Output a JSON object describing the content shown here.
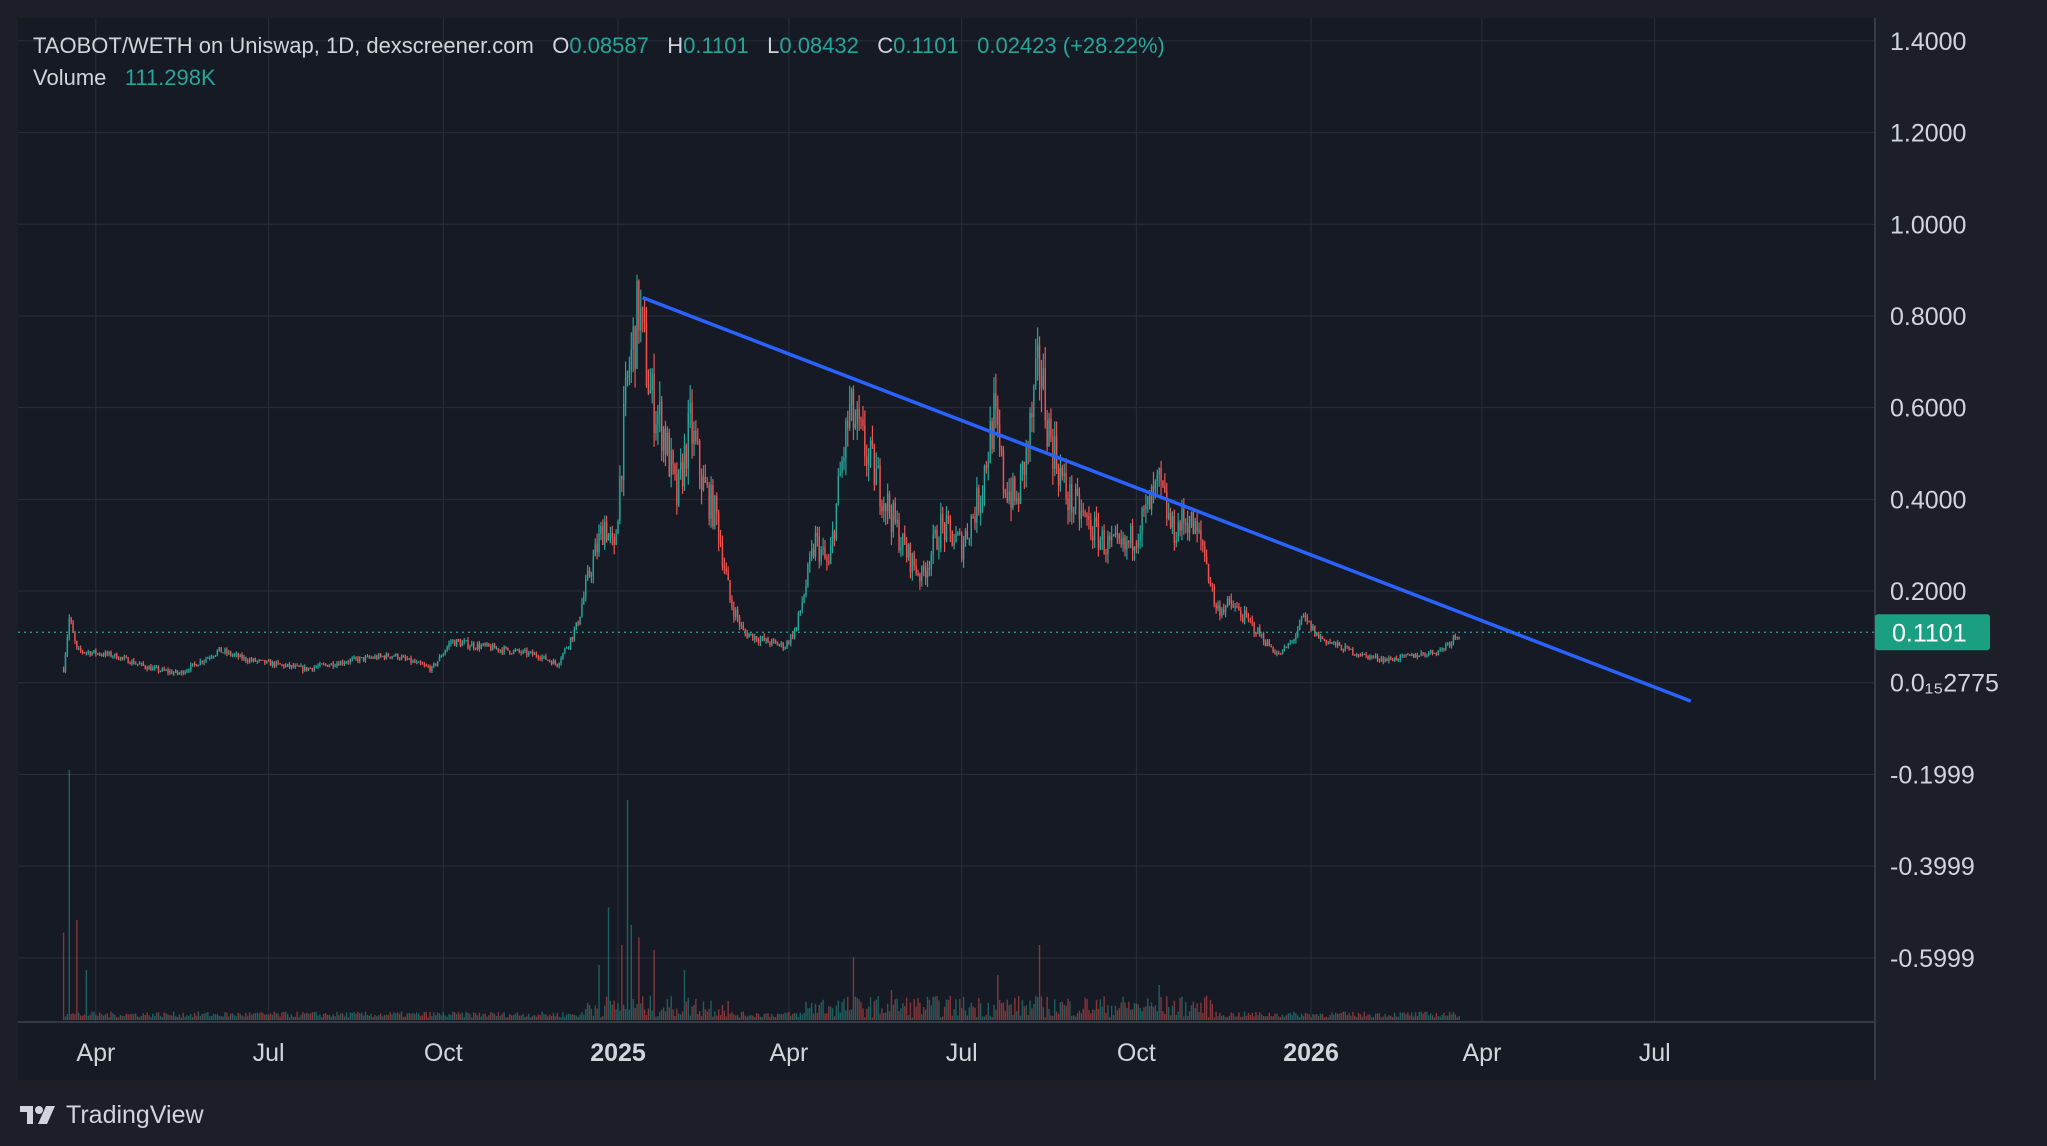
{
  "legend": {
    "symbol": "TAOBOT/WETH on Uniswap, 1D, dexscreener.com",
    "o_label": "O",
    "o_value": "0.08587",
    "h_label": "H",
    "h_value": "0.1101",
    "l_label": "L",
    "l_value": "0.08432",
    "c_label": "C",
    "c_value": "0.1101",
    "change": "0.02423 (+28.22%)",
    "volume_label": "Volume",
    "volume_value": "111.298K"
  },
  "price_tag": "0.1101",
  "footer": {
    "brand": "TradingView",
    "logo_icon": "tradingview-logo-icon"
  },
  "colors": {
    "background": "#1c1f28",
    "plot_background": "#161a25",
    "up": "#26a69a",
    "down": "#ef5350",
    "trendline": "#2962ff",
    "grid": "#2a2e39",
    "axis_text": "#d1d4dc"
  },
  "chart_data": {
    "type": "candlestick",
    "interval": "1D",
    "y_ticks": [
      "1.4000",
      "1.2000",
      "1.0000",
      "0.8000",
      "0.6000",
      "0.4000",
      "0.2000",
      "0.0₁₅2775",
      "-0.1999",
      "-0.3999",
      "-0.5999"
    ],
    "y_tick_values": [
      1.4,
      1.2,
      1.0,
      0.8,
      0.6,
      0.4,
      0.2,
      0.0,
      -0.2,
      -0.4,
      -0.6
    ],
    "ylim": [
      -0.74,
      1.45
    ],
    "x_ticks": [
      {
        "label": "Apr",
        "date": "2024-04-01",
        "bold": false
      },
      {
        "label": "Jul",
        "date": "2024-07-01",
        "bold": false
      },
      {
        "label": "Oct",
        "date": "2024-10-01",
        "bold": false
      },
      {
        "label": "2025",
        "date": "2025-01-01",
        "bold": true
      },
      {
        "label": "Apr",
        "date": "2025-04-01",
        "bold": false
      },
      {
        "label": "Jul",
        "date": "2025-07-01",
        "bold": false
      },
      {
        "label": "Oct",
        "date": "2025-10-01",
        "bold": false
      },
      {
        "label": "2026",
        "date": "2026-01-01",
        "bold": true
      },
      {
        "label": "Apr",
        "date": "2026-04-01",
        "bold": false
      },
      {
        "label": "Jul",
        "date": "2026-07-01",
        "bold": false
      }
    ],
    "xlim": [
      "2024-02-20",
      "2026-10-25"
    ],
    "last_price": 0.1101,
    "close_series": [
      [
        "2024-03-15",
        0.03
      ],
      [
        "2024-03-18",
        0.14
      ],
      [
        "2024-03-22",
        0.07
      ],
      [
        "2024-04-10",
        0.06
      ],
      [
        "2024-05-01",
        0.03
      ],
      [
        "2024-05-15",
        0.02
      ],
      [
        "2024-06-05",
        0.07
      ],
      [
        "2024-06-20",
        0.05
      ],
      [
        "2024-07-20",
        0.03
      ],
      [
        "2024-08-15",
        0.05
      ],
      [
        "2024-09-05",
        0.06
      ],
      [
        "2024-09-25",
        0.03
      ],
      [
        "2024-10-05",
        0.09
      ],
      [
        "2024-10-20",
        0.08
      ],
      [
        "2024-11-05",
        0.07
      ],
      [
        "2024-11-20",
        0.06
      ],
      [
        "2024-11-30",
        0.04
      ],
      [
        "2024-12-10",
        0.12
      ],
      [
        "2024-12-17",
        0.24
      ],
      [
        "2024-12-25",
        0.35
      ],
      [
        "2024-12-30",
        0.28
      ],
      [
        "2025-01-06",
        0.66
      ],
      [
        "2025-01-12",
        0.82
      ],
      [
        "2025-01-18",
        0.63
      ],
      [
        "2025-01-25",
        0.55
      ],
      [
        "2025-02-01",
        0.4
      ],
      [
        "2025-02-08",
        0.56
      ],
      [
        "2025-02-15",
        0.43
      ],
      [
        "2025-02-22",
        0.36
      ],
      [
        "2025-03-01",
        0.18
      ],
      [
        "2025-03-08",
        0.11
      ],
      [
        "2025-03-20",
        0.09
      ],
      [
        "2025-03-30",
        0.08
      ],
      [
        "2025-04-05",
        0.12
      ],
      [
        "2025-04-15",
        0.31
      ],
      [
        "2025-04-22",
        0.25
      ],
      [
        "2025-04-28",
        0.45
      ],
      [
        "2025-05-03",
        0.59
      ],
      [
        "2025-05-10",
        0.52
      ],
      [
        "2025-05-20",
        0.42
      ],
      [
        "2025-06-01",
        0.29
      ],
      [
        "2025-06-10",
        0.23
      ],
      [
        "2025-06-20",
        0.34
      ],
      [
        "2025-07-01",
        0.3
      ],
      [
        "2025-07-10",
        0.4
      ],
      [
        "2025-07-18",
        0.58
      ],
      [
        "2025-07-23",
        0.44
      ],
      [
        "2025-07-30",
        0.39
      ],
      [
        "2025-08-05",
        0.52
      ],
      [
        "2025-08-11",
        0.7
      ],
      [
        "2025-08-16",
        0.55
      ],
      [
        "2025-08-25",
        0.41
      ],
      [
        "2025-09-05",
        0.35
      ],
      [
        "2025-09-15",
        0.3
      ],
      [
        "2025-09-25",
        0.29
      ],
      [
        "2025-10-05",
        0.36
      ],
      [
        "2025-10-13",
        0.43
      ],
      [
        "2025-10-20",
        0.33
      ],
      [
        "2025-10-28",
        0.36
      ],
      [
        "2025-11-05",
        0.3
      ],
      [
        "2025-11-12",
        0.16
      ],
      [
        "2025-11-20",
        0.17
      ],
      [
        "2025-11-30",
        0.13
      ],
      [
        "2025-12-08",
        0.09
      ],
      [
        "2025-12-15",
        0.06
      ],
      [
        "2025-12-22",
        0.09
      ],
      [
        "2025-12-28",
        0.14
      ],
      [
        "2026-01-05",
        0.1
      ],
      [
        "2026-01-15",
        0.08
      ],
      [
        "2026-01-28",
        0.06
      ],
      [
        "2026-02-10",
        0.05
      ],
      [
        "2026-02-25",
        0.06
      ],
      [
        "2026-03-10",
        0.07
      ],
      [
        "2026-03-20",
        0.1101
      ]
    ],
    "volume_series": [
      [
        "2024-03-15",
        0.35
      ],
      [
        "2024-03-18",
        1.0
      ],
      [
        "2024-03-22",
        0.4
      ],
      [
        "2024-03-27",
        0.2
      ],
      [
        "2024-12-22",
        0.22
      ],
      [
        "2024-12-27",
        0.45
      ],
      [
        "2025-01-03",
        0.3
      ],
      [
        "2025-01-06",
        0.88
      ],
      [
        "2025-01-08",
        0.38
      ],
      [
        "2025-01-12",
        0.33
      ],
      [
        "2025-01-20",
        0.28
      ],
      [
        "2025-02-05",
        0.2
      ],
      [
        "2025-05-05",
        0.25
      ],
      [
        "2025-05-25",
        0.12
      ],
      [
        "2025-07-20",
        0.18
      ],
      [
        "2025-08-11",
        0.3
      ],
      [
        "2025-10-13",
        0.14
      ]
    ],
    "trendline": {
      "from": {
        "date": "2025-01-14",
        "value": 0.84
      },
      "to": {
        "date": "2026-07-20",
        "value": -0.04
      }
    }
  }
}
